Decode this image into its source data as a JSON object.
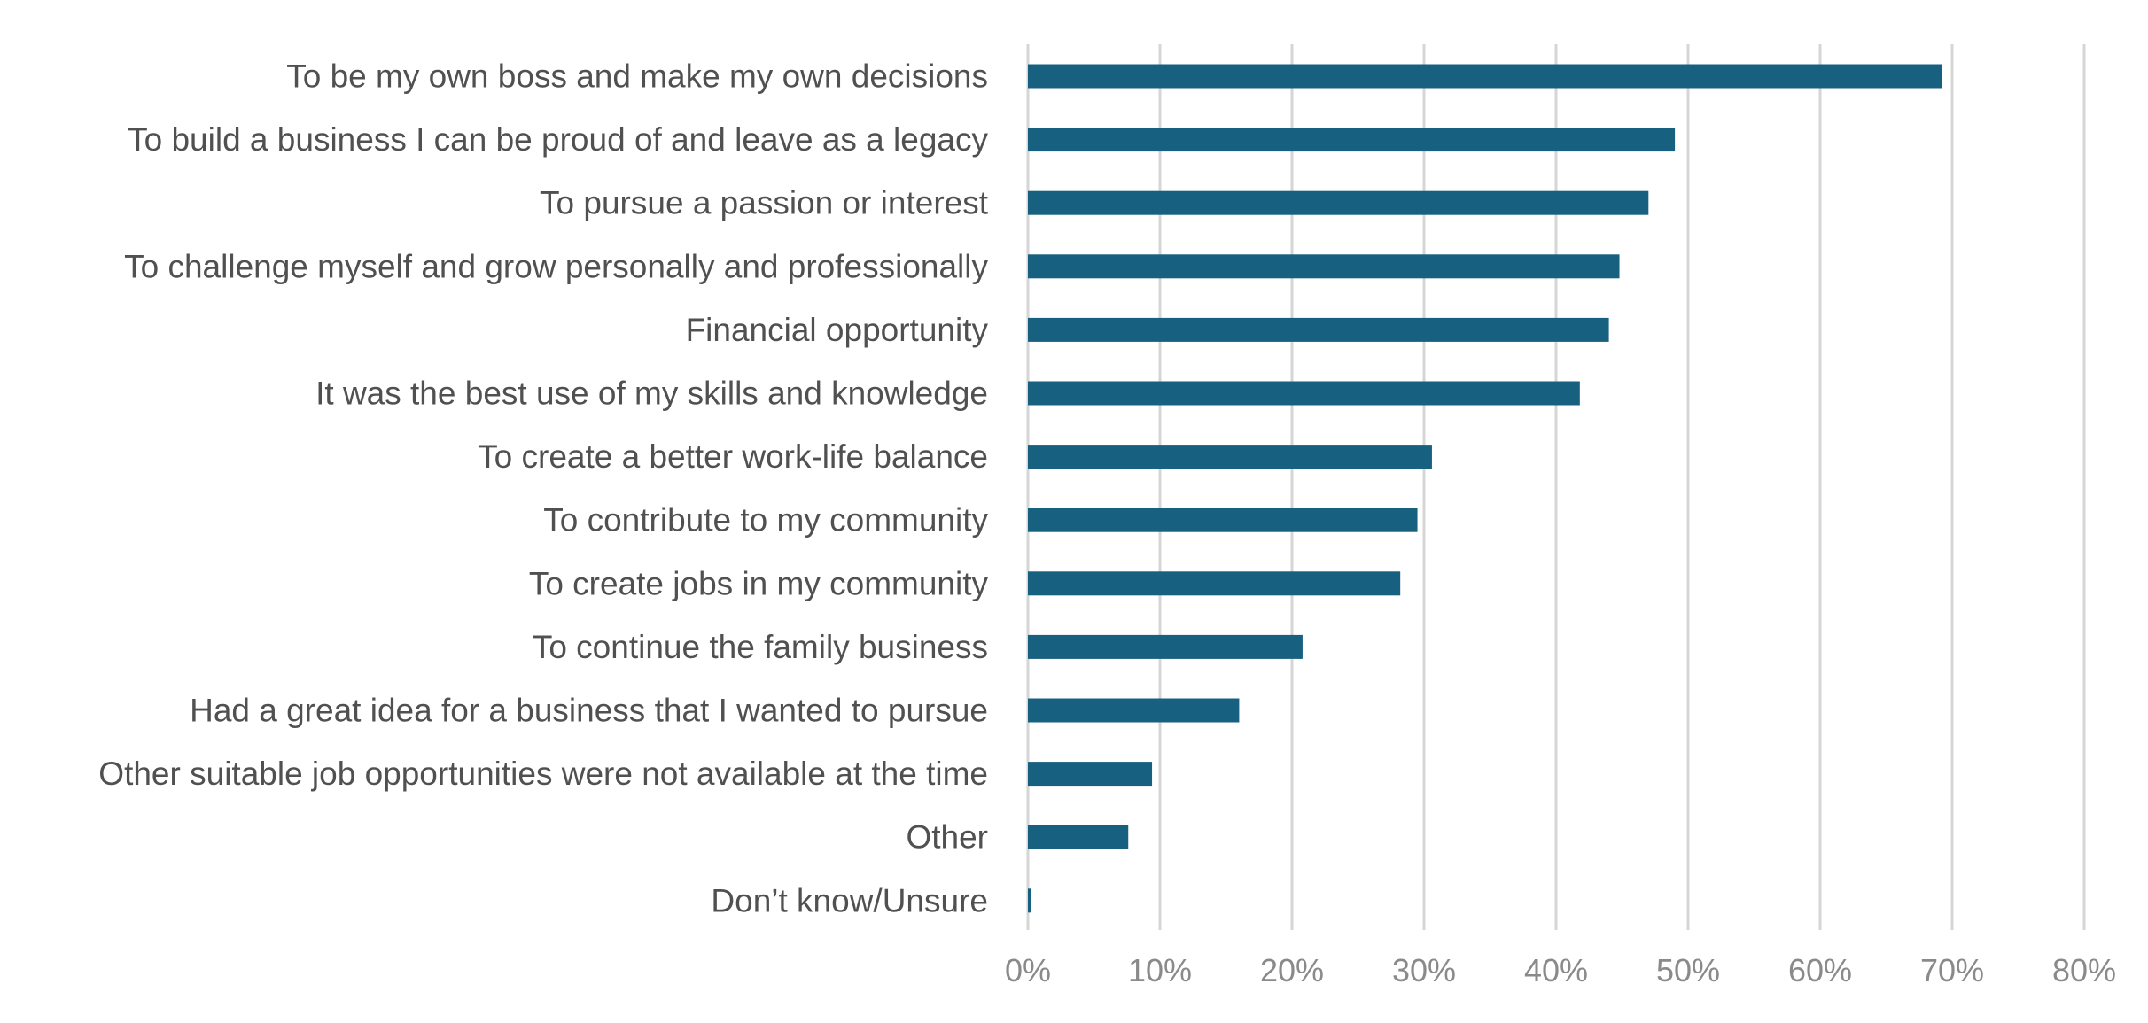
{
  "chart_data": {
    "type": "bar",
    "orientation": "horizontal",
    "title": "",
    "xlabel": "",
    "ylabel": "",
    "categories": [
      "To be my own boss and make my own decisions",
      "To build a business I can be proud of and leave as a legacy",
      "To pursue a passion or interest",
      "To challenge myself and grow personally and professionally",
      "Financial opportunity",
      "It was the best use of my skills and knowledge",
      "To create a better work-life balance",
      "To contribute to my community",
      "To create jobs in my community",
      "To continue the family business",
      "Had a great idea for a business that I wanted to pursue",
      "Other suitable job opportunities were not available at the time",
      "Other",
      "Don’t know/Unsure"
    ],
    "values": [
      69.2,
      49.0,
      47.0,
      44.8,
      44.0,
      41.8,
      30.6,
      29.5,
      28.2,
      20.8,
      16.0,
      9.4,
      7.6,
      0.2
    ],
    "xlim": [
      0,
      80
    ],
    "x_ticks": [
      "0%",
      "10%",
      "20%",
      "30%",
      "40%",
      "50%",
      "60%",
      "70%",
      "80%"
    ],
    "grid": "vertical",
    "legend": "none",
    "bar_color": "#17607f"
  }
}
